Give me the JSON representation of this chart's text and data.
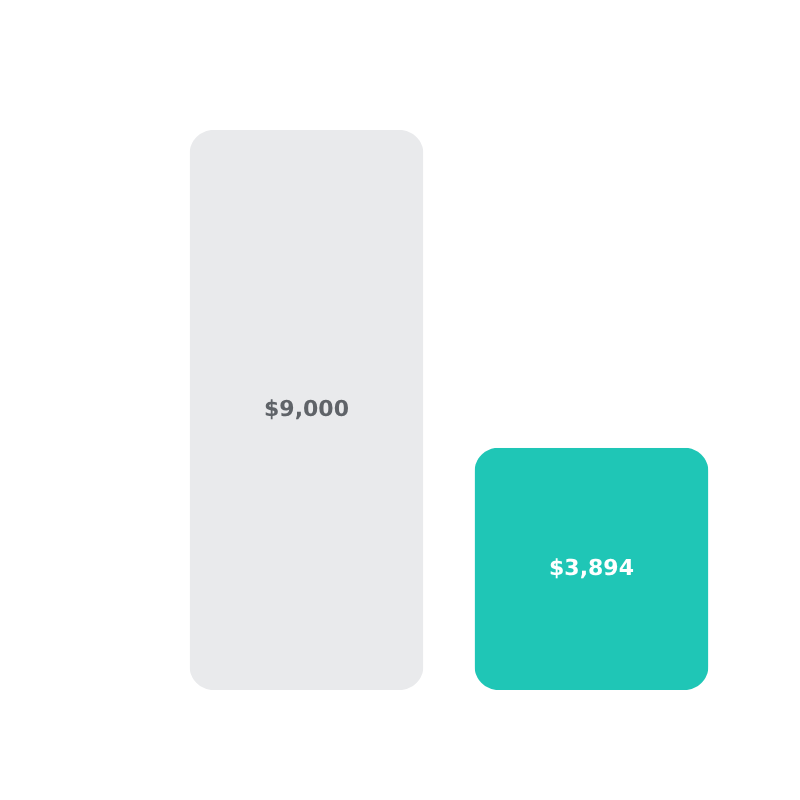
{
  "chart_data": {
    "type": "bar",
    "categories": [
      null,
      null
    ],
    "values": [
      9000,
      3894
    ],
    "colors": [
      "#e9eaec",
      "#1fc6b6"
    ],
    "value_labels": [
      "$9,000",
      "$3,894"
    ]
  }
}
